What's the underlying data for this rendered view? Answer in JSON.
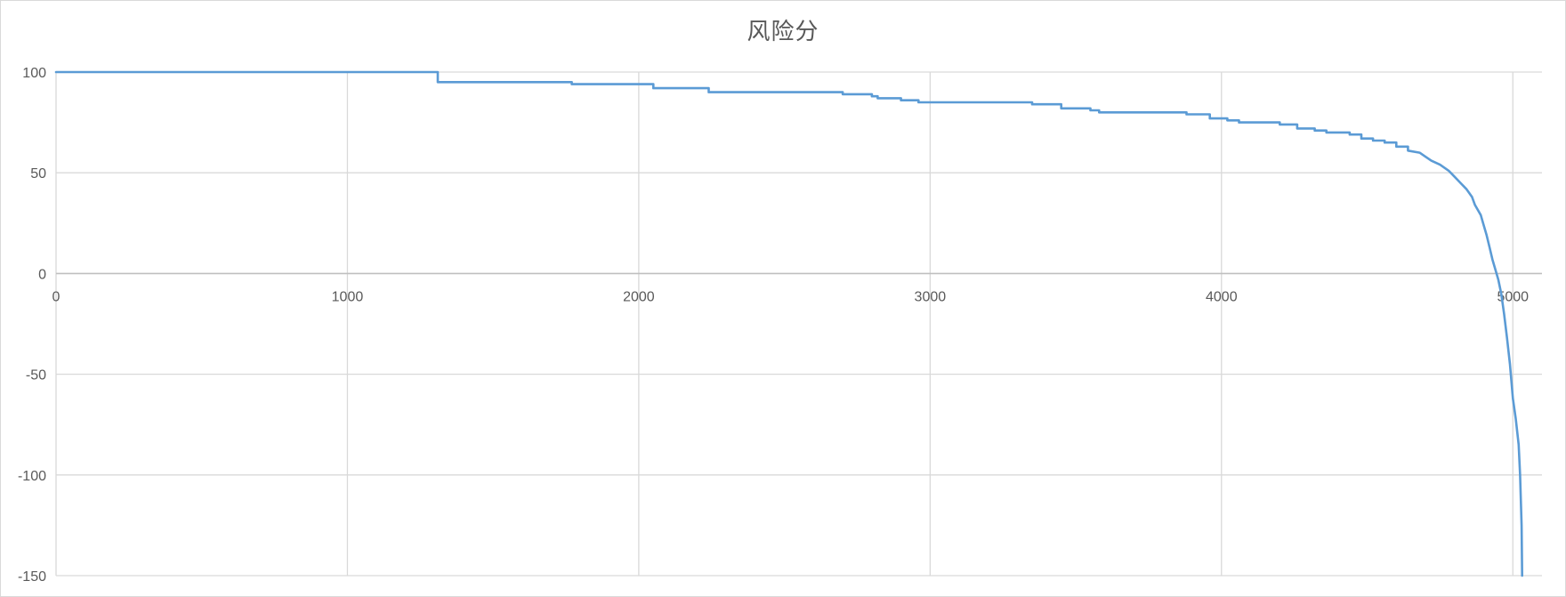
{
  "chart_data": {
    "type": "line",
    "title": "风险分",
    "xlabel": "",
    "ylabel": "",
    "xlim": [
      0,
      5100
    ],
    "ylim": [
      -150,
      100
    ],
    "x_ticks": [
      0,
      1000,
      2000,
      3000,
      4000,
      5000
    ],
    "y_ticks": [
      100,
      50,
      0,
      -50,
      -100,
      -150
    ],
    "grid": true,
    "legend": "none",
    "series": [
      {
        "color": "#5b9bd5",
        "x": [
          0,
          1310,
          1310,
          1770,
          1770,
          2050,
          2050,
          2240,
          2240,
          2700,
          2700,
          2800,
          2800,
          2820,
          2820,
          2900,
          2900,
          2960,
          2960,
          3350,
          3350,
          3450,
          3450,
          3550,
          3550,
          3580,
          3580,
          3880,
          3880,
          3960,
          3960,
          4020,
          4020,
          4060,
          4060,
          4200,
          4200,
          4260,
          4260,
          4320,
          4320,
          4360,
          4360,
          4440,
          4440,
          4480,
          4480,
          4520,
          4520,
          4560,
          4560,
          4600,
          4600,
          4640,
          4640,
          4680,
          4700,
          4720,
          4750,
          4780,
          4800,
          4820,
          4840,
          4860,
          4870,
          4890,
          4900,
          4910,
          4920,
          4930,
          4940,
          4950,
          4960,
          4970,
          4980,
          4990,
          5000,
          5010,
          5020,
          5025,
          5030,
          5032
        ],
        "y": [
          100,
          100,
          95,
          95,
          94,
          94,
          92,
          92,
          90,
          90,
          89,
          89,
          88,
          88,
          87,
          87,
          86,
          86,
          85,
          85,
          84,
          84,
          82,
          82,
          81,
          81,
          80,
          80,
          79,
          79,
          77,
          77,
          76,
          76,
          75,
          75,
          74,
          74,
          72,
          72,
          71,
          71,
          70,
          70,
          69,
          69,
          67,
          67,
          66,
          66,
          65,
          65,
          63,
          63,
          61,
          60,
          58,
          56,
          54,
          51,
          48,
          45,
          42,
          38,
          34,
          29,
          24,
          19,
          13,
          7,
          2,
          -3,
          -10,
          -20,
          -32,
          -45,
          -62,
          -72,
          -85,
          -100,
          -125,
          -150
        ]
      }
    ]
  }
}
